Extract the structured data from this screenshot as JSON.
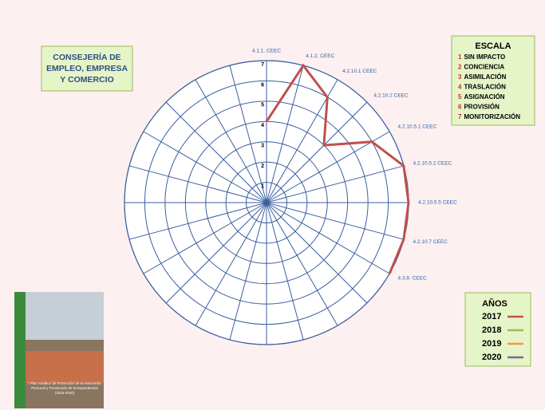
{
  "chart_data": {
    "type": "radar",
    "categories": [
      "4.1.1. CEEC",
      "4.1.2. CEEC",
      "4.2.10.1 CEEC",
      "4.2.10.2 CEEC",
      "4.2.10.5.1 CEEC",
      "4.2.10.5.2 CEEC",
      "4.2.10.5.5 CEEC",
      "4.2.10.7 CEEC",
      "4.3.8. CEEC",
      null,
      null,
      null,
      null,
      null,
      null,
      null,
      null,
      null,
      null,
      null,
      null,
      null,
      null,
      null
    ],
    "series": [
      {
        "name": "2017",
        "color": "#c0504d",
        "values": [
          4,
          7,
          6,
          4,
          6,
          7,
          7,
          7,
          7,
          null,
          null,
          null,
          null,
          null,
          null,
          null,
          null,
          null,
          null,
          null,
          null,
          null,
          null,
          null
        ]
      },
      {
        "name": "2018",
        "color": "#9bbb59",
        "values": [
          null,
          null,
          null,
          null,
          null,
          null,
          null,
          null,
          null,
          null,
          null,
          null,
          null,
          null,
          null,
          null,
          null,
          null,
          null,
          null,
          null,
          null,
          null,
          null
        ]
      },
      {
        "name": "2019",
        "color": "#f79646",
        "values": [
          null,
          null,
          null,
          null,
          null,
          null,
          null,
          null,
          null,
          null,
          null,
          null,
          null,
          null,
          null,
          null,
          null,
          null,
          null,
          null,
          null,
          null,
          null,
          null
        ]
      },
      {
        "name": "2020",
        "color": "#8064a2",
        "values": [
          null,
          null,
          null,
          null,
          null,
          null,
          null,
          null,
          null,
          null,
          null,
          null,
          null,
          null,
          null,
          null,
          null,
          null,
          null,
          null,
          null,
          null,
          null,
          null
        ]
      }
    ],
    "ylim": [
      0,
      7
    ],
    "yticks": [
      1,
      2,
      3,
      4,
      5,
      6,
      7
    ],
    "grid": true,
    "grid_color": "#3a5fa0",
    "legend_title": "AÑOS",
    "legend_position": "lower right"
  },
  "header": {
    "title": "CONSEJERÍA DE EMPLEO, EMPRESA Y COMERCIO"
  },
  "scale": {
    "title": "ESCALA",
    "items": [
      {
        "number": "1",
        "label": "SIN IMPACTO"
      },
      {
        "number": "2",
        "label": "CONCIENCIA"
      },
      {
        "number": "3",
        "label": "ASIMILACIÓN"
      },
      {
        "number": "4",
        "label": "TRASLACIÓN"
      },
      {
        "number": "5",
        "label": "ASIGNACIÓN"
      },
      {
        "number": "6",
        "label": "PROVISIÓN"
      },
      {
        "number": "7",
        "label": "MONITORIZACIÓN"
      }
    ]
  },
  "cover": {
    "text": "I Plan Andaluz de Promoción de la Autonomía Personal y Prevención de la Dependencia (2016-2020)"
  }
}
